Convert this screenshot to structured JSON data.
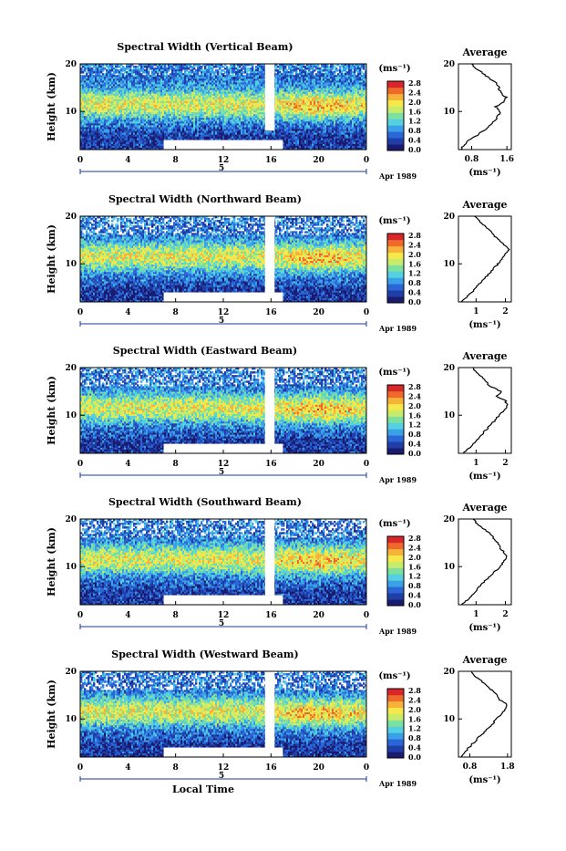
{
  "colors": {
    "colormap": [
      "#1a1a6e",
      "#1f3fa8",
      "#2a66d6",
      "#3aa0e8",
      "#55d0e0",
      "#7be0a0",
      "#c8ec6a",
      "#f4e84a",
      "#f7b23a",
      "#ef6a2a",
      "#d8262a"
    ],
    "background": "#ffffff",
    "axis": "#000000",
    "gap": "#ffffff"
  },
  "chart_data": [
    {
      "type": "heatmap",
      "title": "Spectral Width (Vertical Beam)",
      "ylabel": "Height (km)",
      "x_ticks": [
        "0",
        "4",
        "8",
        "12",
        "16",
        "20",
        "0"
      ],
      "y_ticks": [
        "20",
        "10"
      ],
      "xlim": [
        0,
        24
      ],
      "ylim": [
        2,
        20
      ],
      "date_label": "Apr 1989",
      "date_tick": "5",
      "colorbar": {
        "unit": "(ms⁻¹)",
        "ticks": [
          "2.8",
          "2.4",
          "2.0",
          "1.6",
          "1.2",
          "0.8",
          "0.4",
          "0.0"
        ],
        "range": [
          0.0,
          2.8
        ]
      },
      "missing_regions": [
        {
          "x": [
            7,
            17
          ],
          "y": [
            2,
            4
          ]
        },
        {
          "x": [
            15.5,
            16.3
          ],
          "y": [
            6,
            20
          ]
        }
      ],
      "profile": {
        "title": "Average",
        "xlabel": "(ms⁻¹)",
        "x_ticks": [
          "0.8",
          "1.6"
        ],
        "y_ticks": [
          "20",
          "10"
        ],
        "xlim": [
          0.5,
          1.7
        ],
        "height": [
          2,
          3,
          4,
          5,
          6,
          7,
          8,
          9,
          10,
          11,
          12,
          13,
          14,
          15,
          16,
          17,
          18,
          19,
          20
        ],
        "value": [
          0.55,
          0.62,
          0.75,
          0.92,
          1.08,
          1.2,
          1.32,
          1.4,
          1.45,
          1.35,
          1.52,
          1.58,
          1.45,
          1.42,
          1.35,
          1.2,
          1.05,
          0.9,
          0.8
        ]
      }
    },
    {
      "type": "heatmap",
      "title": "Spectral Width (Northward Beam)",
      "ylabel": "Height (km)",
      "x_ticks": [
        "0",
        "4",
        "8",
        "12",
        "16",
        "20",
        "0"
      ],
      "y_ticks": [
        "20",
        "10"
      ],
      "xlim": [
        0,
        24
      ],
      "ylim": [
        2,
        20
      ],
      "date_label": "Apr 1989",
      "date_tick": "5",
      "colorbar": {
        "unit": "(ms⁻¹)",
        "ticks": [
          "2.8",
          "2.4",
          "2.0",
          "1.6",
          "1.2",
          "0.8",
          "0.4",
          "0.0"
        ],
        "range": [
          0.0,
          2.8
        ]
      },
      "missing_regions": [
        {
          "x": [
            7,
            17
          ],
          "y": [
            2,
            4
          ]
        },
        {
          "x": [
            15.5,
            16.3
          ],
          "y": [
            4,
            20
          ]
        }
      ],
      "profile": {
        "title": "Average",
        "xlabel": "(ms⁻¹)",
        "x_ticks": [
          "1",
          "2"
        ],
        "y_ticks": [
          "20",
          "10"
        ],
        "xlim": [
          0.4,
          2.2
        ],
        "height": [
          2,
          3,
          4,
          5,
          6,
          7,
          8,
          9,
          10,
          11,
          12,
          13,
          14,
          15,
          16,
          17,
          18,
          19,
          20
        ],
        "value": [
          0.5,
          0.7,
          0.85,
          1.0,
          1.15,
          1.3,
          1.45,
          1.6,
          1.75,
          1.9,
          2.0,
          2.1,
          1.95,
          1.8,
          1.6,
          1.5,
          1.3,
          1.1,
          0.95
        ]
      }
    },
    {
      "type": "heatmap",
      "title": "Spectral Width (Eastward Beam)",
      "ylabel": "Height (km)",
      "x_ticks": [
        "0",
        "4",
        "8",
        "12",
        "16",
        "20",
        "0"
      ],
      "y_ticks": [
        "20",
        "10"
      ],
      "xlim": [
        0,
        24
      ],
      "ylim": [
        2,
        20
      ],
      "date_label": "Apr 1989",
      "date_tick": "5",
      "colorbar": {
        "unit": "(ms⁻¹)",
        "ticks": [
          "2.8",
          "2.4",
          "2.0",
          "1.6",
          "1.2",
          "0.8",
          "0.4",
          "0.0"
        ],
        "range": [
          0.0,
          2.8
        ]
      },
      "missing_regions": [
        {
          "x": [
            7,
            17
          ],
          "y": [
            2,
            4
          ]
        },
        {
          "x": [
            15.5,
            16.3
          ],
          "y": [
            4,
            20
          ]
        }
      ],
      "profile": {
        "title": "Average",
        "xlabel": "(ms⁻¹)",
        "x_ticks": [
          "1",
          "2"
        ],
        "y_ticks": [
          "20",
          "10"
        ],
        "xlim": [
          0.4,
          2.2
        ],
        "height": [
          2,
          3,
          4,
          5,
          6,
          7,
          8,
          9,
          10,
          11,
          12,
          13,
          14,
          15,
          16,
          17,
          18,
          19,
          20
        ],
        "value": [
          0.55,
          0.75,
          0.9,
          1.05,
          1.2,
          1.35,
          1.5,
          1.65,
          1.8,
          1.95,
          2.05,
          2.0,
          1.7,
          1.85,
          1.5,
          1.35,
          1.2,
          1.0,
          0.9
        ]
      }
    },
    {
      "type": "heatmap",
      "title": "Spectral Width (Southward Beam)",
      "ylabel": "Height (km)",
      "x_ticks": [
        "0",
        "4",
        "8",
        "12",
        "16",
        "20",
        "0"
      ],
      "y_ticks": [
        "20",
        "10"
      ],
      "xlim": [
        0,
        24
      ],
      "ylim": [
        2,
        20
      ],
      "date_label": "Apr 1989",
      "date_tick": "5",
      "colorbar": {
        "unit": "(ms⁻¹)",
        "ticks": [
          "2.8",
          "2.4",
          "2.0",
          "1.6",
          "1.2",
          "0.8",
          "0.4",
          "0.0"
        ],
        "range": [
          0.0,
          2.8
        ]
      },
      "missing_regions": [
        {
          "x": [
            7,
            17
          ],
          "y": [
            2,
            4
          ]
        },
        {
          "x": [
            15.5,
            16.3
          ],
          "y": [
            4,
            20
          ]
        }
      ],
      "profile": {
        "title": "Average",
        "xlabel": "(ms⁻¹)",
        "x_ticks": [
          "1",
          "2"
        ],
        "y_ticks": [
          "20",
          "10"
        ],
        "xlim": [
          0.4,
          2.2
        ],
        "height": [
          2,
          3,
          4,
          5,
          6,
          7,
          8,
          9,
          10,
          11,
          12,
          13,
          14,
          15,
          16,
          17,
          18,
          19,
          20
        ],
        "value": [
          0.5,
          0.7,
          0.85,
          1.0,
          1.15,
          1.3,
          1.5,
          1.65,
          1.8,
          1.95,
          2.05,
          1.95,
          1.8,
          1.75,
          1.6,
          1.45,
          1.25,
          1.05,
          0.9
        ]
      }
    },
    {
      "type": "heatmap",
      "title": "Spectral Width (Westward Beam)",
      "ylabel": "Height (km)",
      "x_ticks": [
        "0",
        "4",
        "8",
        "12",
        "16",
        "20",
        "0"
      ],
      "y_ticks": [
        "20",
        "10"
      ],
      "xlim": [
        0,
        24
      ],
      "ylim": [
        2,
        20
      ],
      "date_label": "Apr 1989",
      "date_tick": "5",
      "xlabel": "Local Time",
      "colorbar": {
        "unit": "(ms⁻¹)",
        "ticks": [
          "2.8",
          "2.4",
          "2.0",
          "1.6",
          "1.2",
          "0.8",
          "0.4",
          "0.0"
        ],
        "range": [
          0.0,
          2.8
        ]
      },
      "missing_regions": [
        {
          "x": [
            7,
            17
          ],
          "y": [
            2,
            4
          ]
        },
        {
          "x": [
            15.5,
            16.3
          ],
          "y": [
            4,
            20
          ]
        }
      ],
      "profile": {
        "title": "Average",
        "xlabel": "(ms⁻¹)",
        "x_ticks": [
          "0.8",
          "1.8"
        ],
        "y_ticks": [
          "20",
          "10"
        ],
        "xlim": [
          0.5,
          1.9
        ],
        "height": [
          2,
          3,
          4,
          5,
          6,
          7,
          8,
          9,
          10,
          11,
          12,
          13,
          14,
          15,
          16,
          17,
          18,
          19,
          20
        ],
        "value": [
          0.55,
          0.65,
          0.78,
          0.9,
          1.02,
          1.15,
          1.28,
          1.4,
          1.52,
          1.62,
          1.75,
          1.8,
          1.6,
          1.5,
          1.4,
          1.25,
          1.1,
          0.95,
          0.85
        ]
      }
    }
  ]
}
